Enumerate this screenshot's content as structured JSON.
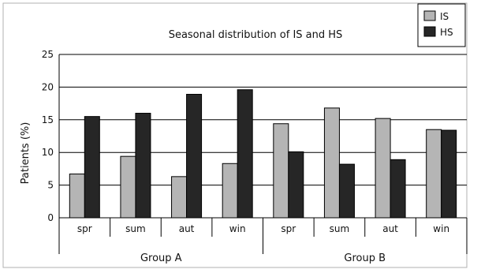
{
  "chart_data": {
    "type": "bar",
    "title": "Seasonal distribution of IS and HS",
    "xlabel": "",
    "ylabel": "Patients (%)",
    "ylim": [
      0,
      25
    ],
    "yticks": [
      0,
      5,
      10,
      15,
      20,
      25
    ],
    "grid": true,
    "legend_position": "top-right",
    "groups": [
      "Group A",
      "Group B"
    ],
    "categories": [
      "spr",
      "sum",
      "aut",
      "win",
      "spr",
      "sum",
      "aut",
      "win"
    ],
    "series": [
      {
        "name": "IS",
        "color": "#b5b5b5",
        "values": [
          6.7,
          9.4,
          6.3,
          8.3,
          14.4,
          16.8,
          15.2,
          13.5
        ]
      },
      {
        "name": "HS",
        "color": "#262626",
        "values": [
          15.5,
          16.0,
          18.9,
          19.6,
          10.1,
          8.2,
          8.9,
          13.4
        ]
      }
    ]
  }
}
